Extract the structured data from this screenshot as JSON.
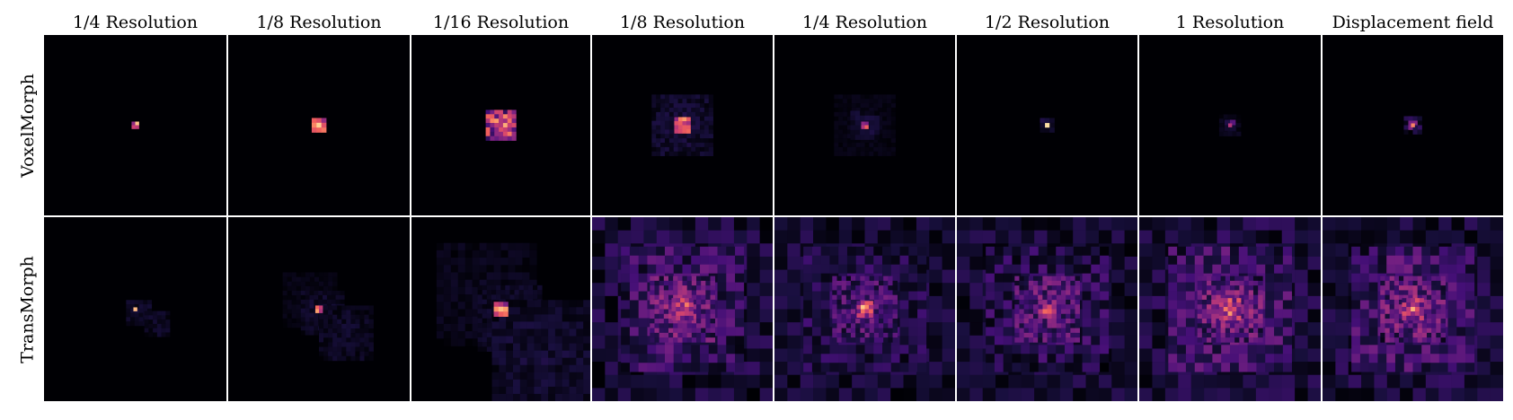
{
  "columns": [
    "1/4 Resolution",
    "1/8 Resolution",
    "1/16 Resolution",
    "1/8 Resolution",
    "1/4 Resolution",
    "1/2 Resolution",
    "1 Resolution",
    "Displacement field"
  ],
  "rows": [
    "VoxelMorph",
    "TransMorph"
  ],
  "colormap": [
    "#000004",
    "#180f3d",
    "#440f76",
    "#721f81",
    "#9e2f7f",
    "#cd4071",
    "#f1605d",
    "#fd9668",
    "#feca8d",
    "#fcfdbf"
  ],
  "background_color": "#000004",
  "grid_line_color": "#ffffff"
}
